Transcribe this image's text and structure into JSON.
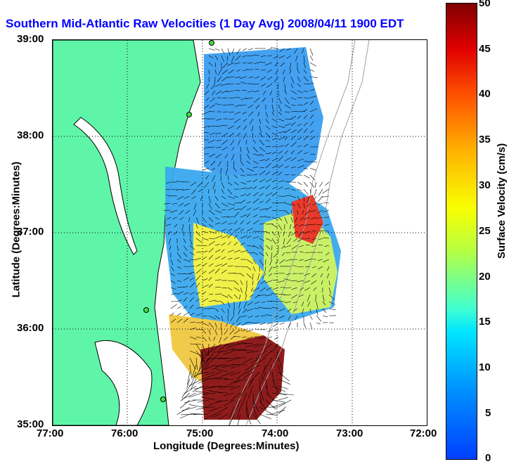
{
  "title": "Southern Mid-Atlantic Raw Velocities (1 Day Avg) 2008/04/11 1900 EDT",
  "axes": {
    "xlabel": "Longitude (Degrees:Minutes)",
    "ylabel": "Latitude (Degrees:Minutes)",
    "xticks": [
      "77:00",
      "76:00",
      "75:00",
      "74:00",
      "73:00",
      "72:00"
    ],
    "yticks": [
      "39:00",
      "38:00",
      "37:00",
      "36:00",
      "35:00"
    ]
  },
  "colorbar": {
    "label": "Surface Velocity (cm/s)",
    "ticks": [
      "50",
      "45",
      "40",
      "35",
      "30",
      "25",
      "20",
      "15",
      "10",
      "5",
      "0"
    ],
    "min": 0,
    "max": 50
  },
  "colors": {
    "land": "#5ff5a8",
    "coast": "#000000",
    "title": "#0000ff",
    "bathymetry": "#a0a0a0",
    "station": "#40e040"
  }
}
